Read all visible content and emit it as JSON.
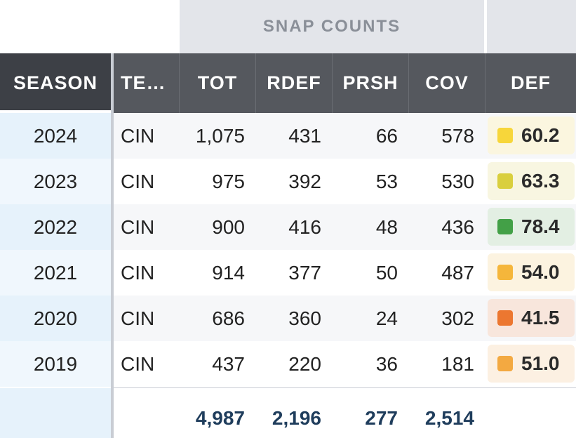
{
  "group_header": {
    "snap_counts": "SNAP COUNTS"
  },
  "columns": {
    "season": "SEASON",
    "team": "TE…",
    "tot": "TOT",
    "rdef": "RDEF",
    "prsh": "PRSH",
    "cov": "COV",
    "def": "DEF"
  },
  "rows": [
    {
      "season": "2024",
      "team": "CIN",
      "tot": "1,075",
      "rdef": "431",
      "prsh": "66",
      "cov": "578",
      "def": "60.2",
      "def_color": "#f7d63a",
      "def_bg": "#fbf6df"
    },
    {
      "season": "2023",
      "team": "CIN",
      "tot": "975",
      "rdef": "392",
      "prsh": "53",
      "cov": "530",
      "def": "63.3",
      "def_color": "#d9cf3e",
      "def_bg": "#f8f6e1"
    },
    {
      "season": "2022",
      "team": "CIN",
      "tot": "900",
      "rdef": "416",
      "prsh": "48",
      "cov": "436",
      "def": "78.4",
      "def_color": "#43a047",
      "def_bg": "#e3efe3"
    },
    {
      "season": "2021",
      "team": "CIN",
      "tot": "914",
      "rdef": "377",
      "prsh": "50",
      "cov": "487",
      "def": "54.0",
      "def_color": "#f5b63b",
      "def_bg": "#fcf3e0"
    },
    {
      "season": "2020",
      "team": "CIN",
      "tot": "686",
      "rdef": "360",
      "prsh": "24",
      "cov": "302",
      "def": "41.5",
      "def_color": "#ec7730",
      "def_bg": "#f8e6dc"
    },
    {
      "season": "2019",
      "team": "CIN",
      "tot": "437",
      "rdef": "220",
      "prsh": "36",
      "cov": "181",
      "def": "51.0",
      "def_color": "#f3a941",
      "def_bg": "#fcf0e2"
    }
  ],
  "totals": {
    "tot": "4,987",
    "rdef": "2,196",
    "prsh": "277",
    "cov": "2,514"
  }
}
